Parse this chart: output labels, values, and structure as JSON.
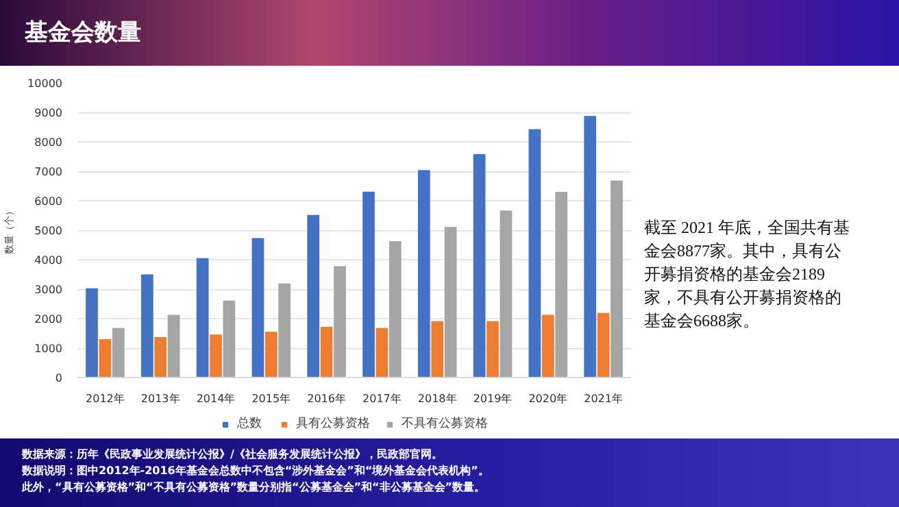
{
  "chart_data": {
    "type": "bar",
    "title": "基金会数量",
    "ylabel": "数量（个）",
    "categories": [
      "2012年",
      "2013年",
      "2014年",
      "2015年",
      "2016年",
      "2017年",
      "2018年",
      "2019年",
      "2020年",
      "2021年"
    ],
    "series": [
      {
        "name": "总数",
        "color": "#4472c4",
        "values": [
          3030,
          3500,
          4050,
          4730,
          5520,
          6310,
          7040,
          7580,
          8430,
          8877
        ]
      },
      {
        "name": "具有公募资格",
        "color": "#ed7d31",
        "values": [
          1300,
          1370,
          1460,
          1550,
          1720,
          1680,
          1910,
          1910,
          2130,
          2189
        ]
      },
      {
        "name": "不具有公募资格",
        "color": "#a5a5a5",
        "values": [
          1680,
          2130,
          2610,
          3190,
          3780,
          4630,
          5110,
          5670,
          6300,
          6688
        ]
      }
    ],
    "ylim": [
      0,
      10000
    ],
    "yticks": [
      0,
      1000,
      2000,
      3000,
      4000,
      5000,
      6000,
      7000,
      8000,
      9000,
      10000
    ],
    "grid": "y",
    "legend": "bottom",
    "annotations": [
      "截至 2021 年底，全国共有基金会8877家。其中，具有公开募捐资格的基金会2189家，不具有公开募捐资格的基金会6688家。",
      "数据来源：历年《民政事业发展统计公报》/《社会服务发展统计公报》，民政部官网。",
      "数据说明：图中2012年-2016年基金会总数中不包含“涉外基金会”和“境外基金会代表机构”。",
      "此外，“具有公募资格”和“不具有公募资格”数量分别指“公募基金会”和“非公募基金会”数量。"
    ]
  }
}
